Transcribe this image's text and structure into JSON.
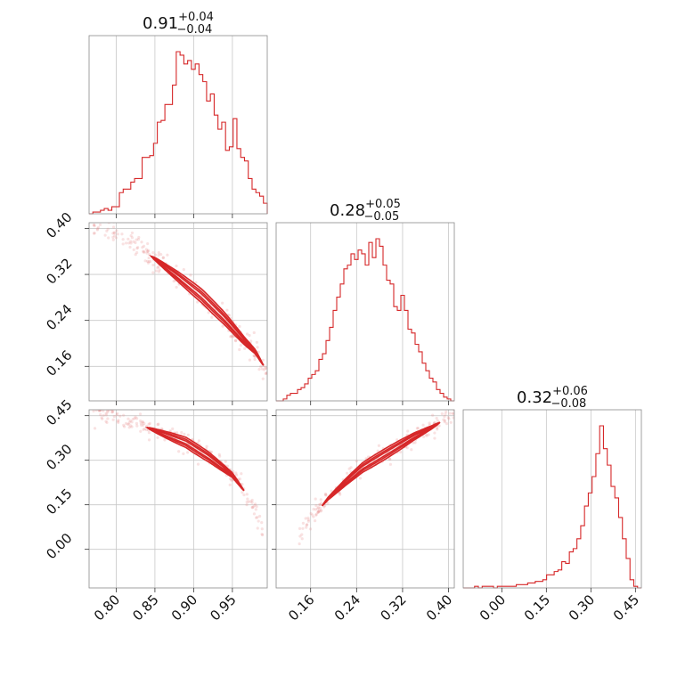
{
  "chart_data": {
    "type": "corner",
    "parameters": [
      {
        "id": "p0",
        "range": [
          0.765,
          0.995
        ],
        "ticks": [
          0.8,
          0.85,
          0.9,
          0.95
        ],
        "ticklabels": [
          "0.80",
          "0.85",
          "0.90",
          "0.95"
        ],
        "title": {
          "value": "0.91",
          "plus": "+0.04",
          "minus": "−0.04"
        }
      },
      {
        "id": "p1",
        "range": [
          0.1,
          0.41
        ],
        "ticks": [
          0.16,
          0.24,
          0.32,
          0.4
        ],
        "ticklabels": [
          "0.16",
          "0.24",
          "0.32",
          "0.40"
        ],
        "title": {
          "value": "0.28",
          "plus": "+0.05",
          "minus": "−0.05"
        }
      },
      {
        "id": "p2",
        "range": [
          -0.13,
          0.47
        ],
        "ticks": [
          0.0,
          0.15,
          0.3,
          0.45
        ],
        "ticklabels": [
          "0.00",
          "0.15",
          "0.30",
          "0.45"
        ],
        "title": {
          "value": "0.32",
          "plus": "+0.06",
          "minus": "−0.08"
        }
      }
    ],
    "histograms": [
      {
        "param": 0,
        "bin_edges": [
          0.765,
          0.995
        ],
        "counts": [
          0,
          1,
          1,
          2,
          3,
          2,
          4,
          4,
          12,
          14,
          14,
          18,
          20,
          20,
          32,
          32,
          33,
          40,
          52,
          53,
          62,
          62,
          73,
          92,
          90,
          85,
          87,
          82,
          85,
          79,
          75,
          64,
          68,
          56,
          48,
          52,
          36,
          38,
          54,
          37,
          32,
          30,
          20,
          14,
          12,
          10,
          6
        ]
      },
      {
        "param": 1,
        "bin_edges": [
          0.1,
          0.41
        ],
        "counts": [
          0,
          0,
          1,
          3,
          4,
          4,
          6,
          7,
          9,
          12,
          14,
          16,
          22,
          25,
          32,
          39,
          48,
          55,
          62,
          70,
          72,
          78,
          75,
          80,
          78,
          72,
          84,
          76,
          86,
          82,
          72,
          64,
          62,
          50,
          48,
          56,
          48,
          38,
          36,
          30,
          26,
          20,
          16,
          12,
          10,
          6,
          4,
          2,
          1,
          0
        ]
      },
      {
        "param": 2,
        "bin_edges": [
          -0.13,
          0.47
        ],
        "counts": [
          0,
          0,
          0,
          1,
          0,
          1,
          1,
          1,
          0,
          1,
          1,
          1,
          1,
          1,
          2,
          2,
          2,
          3,
          3,
          4,
          4,
          5,
          8,
          8,
          10,
          11,
          16,
          15,
          22,
          24,
          30,
          38,
          50,
          58,
          68,
          82,
          99,
          85,
          75,
          62,
          55,
          43,
          30,
          18,
          5,
          1,
          0
        ]
      }
    ],
    "joint": [
      {
        "x": 0,
        "y": 1,
        "ridge": [
          [
            0.77,
            0.41
          ],
          [
            0.79,
            0.395
          ],
          [
            0.82,
            0.375
          ],
          [
            0.85,
            0.347
          ],
          [
            0.88,
            0.316
          ],
          [
            0.91,
            0.283
          ],
          [
            0.94,
            0.243
          ],
          [
            0.965,
            0.205
          ],
          [
            0.98,
            0.185
          ],
          [
            0.995,
            0.15
          ]
        ],
        "contour_span": [
          0.845,
          0.99
        ],
        "scatter_span": [
          0.77,
          0.995
        ],
        "width": 0.012
      },
      {
        "x": 0,
        "y": 2,
        "ridge": [
          [
            0.77,
            0.465
          ],
          [
            0.8,
            0.45
          ],
          [
            0.83,
            0.42
          ],
          [
            0.86,
            0.39
          ],
          [
            0.89,
            0.36
          ],
          [
            0.92,
            0.31
          ],
          [
            0.95,
            0.25
          ],
          [
            0.97,
            0.18
          ],
          [
            0.985,
            0.1
          ],
          [
            0.995,
            0.02
          ]
        ],
        "contour_span": [
          0.84,
          0.965
        ],
        "scatter_span": [
          0.77,
          0.995
        ],
        "width": 0.018
      },
      {
        "x": 1,
        "y": 2,
        "ridge": [
          [
            0.1,
            -0.06
          ],
          [
            0.13,
            0.02
          ],
          [
            0.16,
            0.1
          ],
          [
            0.19,
            0.17
          ],
          [
            0.22,
            0.225
          ],
          [
            0.25,
            0.275
          ],
          [
            0.28,
            0.31
          ],
          [
            0.31,
            0.345
          ],
          [
            0.34,
            0.38
          ],
          [
            0.37,
            0.41
          ],
          [
            0.4,
            0.445
          ],
          [
            0.41,
            0.46
          ]
        ],
        "contour_span": [
          0.18,
          0.385
        ],
        "scatter_span": [
          0.14,
          0.41
        ],
        "width": 0.018
      }
    ],
    "grid": true
  }
}
